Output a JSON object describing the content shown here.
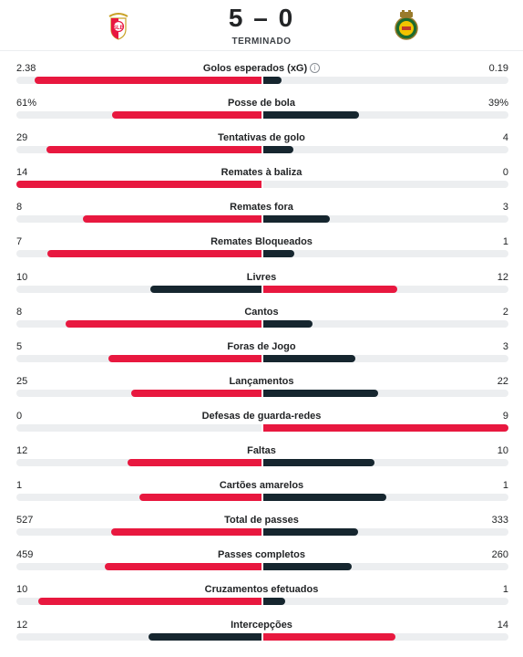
{
  "match": {
    "home_goals": "5",
    "away_goals": "0",
    "separator": "–",
    "status": "TERMINADO"
  },
  "icons": {
    "home_crest": "benfica-crest-icon",
    "away_crest": "rio-ave-crest-icon",
    "info": "info-icon"
  },
  "colors": {
    "home": "#e8183f",
    "away": "#16262f",
    "track": "#eceef0"
  },
  "stats": [
    {
      "label": "Golos esperados (xG)",
      "home": "2.38",
      "away": "0.19",
      "info": true
    },
    {
      "label": "Posse de bola",
      "home": "61%",
      "away": "39%"
    },
    {
      "label": "Tentativas de golo",
      "home": "29",
      "away": "4"
    },
    {
      "label": "Remates à baliza",
      "home": "14",
      "away": "0"
    },
    {
      "label": "Remates fora",
      "home": "8",
      "away": "3"
    },
    {
      "label": "Remates Bloqueados",
      "home": "7",
      "away": "1"
    },
    {
      "label": "Livres",
      "home": "10",
      "away": "12"
    },
    {
      "label": "Cantos",
      "home": "8",
      "away": "2"
    },
    {
      "label": "Foras de Jogo",
      "home": "5",
      "away": "3"
    },
    {
      "label": "Lançamentos",
      "home": "25",
      "away": "22"
    },
    {
      "label": "Defesas de guarda-redes",
      "home": "0",
      "away": "9"
    },
    {
      "label": "Faltas",
      "home": "12",
      "away": "10"
    },
    {
      "label": "Cartões amarelos",
      "home": "1",
      "away": "1"
    },
    {
      "label": "Total de passes",
      "home": "527",
      "away": "333"
    },
    {
      "label": "Passes completos",
      "home": "459",
      "away": "260"
    },
    {
      "label": "Cruzamentos efetuados",
      "home": "10",
      "away": "1"
    },
    {
      "label": "Intercepções",
      "home": "12",
      "away": "14"
    }
  ]
}
